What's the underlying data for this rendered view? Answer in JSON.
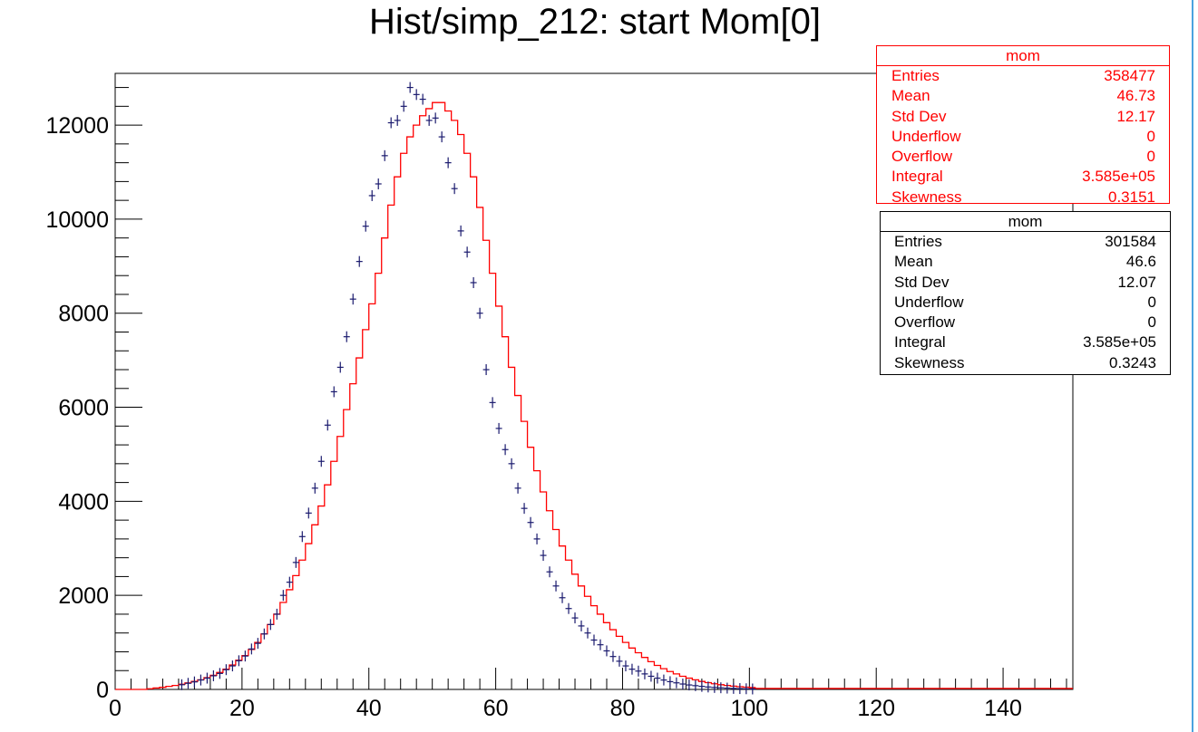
{
  "chart_data": {
    "type": "histogram",
    "title": "Hist/simp_212: start Mom[0]",
    "xlabel": "",
    "ylabel": "",
    "xlim": [
      0,
      151
    ],
    "ylim": [
      0,
      13100
    ],
    "xticks": [
      0,
      20,
      40,
      60,
      80,
      100,
      120,
      140
    ],
    "yticks": [
      0,
      2000,
      4000,
      6000,
      8000,
      10000,
      12000
    ],
    "bin_width": 1,
    "grid": false,
    "series": [
      {
        "name": "",
        "style": "step",
        "color": "#ff0000",
        "x": [
          5,
          6,
          7,
          8,
          9,
          10,
          11,
          12,
          13,
          14,
          15,
          16,
          17,
          18,
          19,
          20,
          21,
          22,
          23,
          24,
          25,
          26,
          27,
          28,
          29,
          30,
          31,
          32,
          33,
          34,
          35,
          36,
          37,
          38,
          39,
          40,
          41,
          42,
          43,
          44,
          45,
          46,
          47,
          48,
          49,
          50,
          51,
          52,
          53,
          54,
          55,
          56,
          57,
          58,
          59,
          60,
          61,
          62,
          63,
          64,
          65,
          66,
          67,
          68,
          69,
          70,
          71,
          72,
          73,
          74,
          75,
          76,
          77,
          78,
          79,
          80,
          81,
          82,
          83,
          84,
          85,
          86,
          87,
          88,
          89,
          90,
          91,
          92,
          93,
          94,
          95,
          96,
          97,
          98,
          99,
          100
        ],
        "values": [
          15,
          30,
          45,
          65,
          85,
          110,
          140,
          170,
          205,
          250,
          300,
          360,
          430,
          520,
          620,
          720,
          850,
          1000,
          1180,
          1380,
          1600,
          1850,
          2120,
          2420,
          2750,
          3100,
          3500,
          3900,
          4350,
          4850,
          5380,
          5950,
          6500,
          7050,
          7650,
          8200,
          8850,
          9600,
          10300,
          10900,
          11400,
          11750,
          12000,
          12200,
          12350,
          12480,
          12480,
          12300,
          12100,
          11800,
          11400,
          10900,
          10250,
          9550,
          8850,
          8150,
          7500,
          6850,
          6250,
          5700,
          5150,
          4650,
          4200,
          3800,
          3400,
          3050,
          2750,
          2450,
          2200,
          1980,
          1780,
          1600,
          1420,
          1270,
          1130,
          1000,
          880,
          780,
          680,
          590,
          510,
          440,
          380,
          330,
          280,
          240,
          205,
          170,
          145,
          120,
          100,
          85,
          70,
          58,
          48,
          40
        ],
        "tail": {
          "from": 100,
          "to": 151,
          "value": 20
        }
      },
      {
        "name": "",
        "style": "points",
        "color": "#1a1a6e",
        "x": [
          10,
          11,
          12,
          13,
          14,
          15,
          16,
          17,
          18,
          19,
          20,
          21,
          22,
          23,
          24,
          25,
          26,
          27,
          28,
          29,
          30,
          31,
          32,
          33,
          34,
          35,
          36,
          37,
          38,
          39,
          40,
          41,
          42,
          43,
          44,
          45,
          46,
          47,
          48,
          49,
          50,
          51,
          52,
          53,
          54,
          55,
          56,
          57,
          58,
          59,
          60,
          61,
          62,
          63,
          64,
          65,
          66,
          67,
          68,
          69,
          70,
          71,
          72,
          73,
          74,
          75,
          76,
          77,
          78,
          79,
          80,
          81,
          82,
          83,
          84,
          85,
          86,
          87,
          88,
          89,
          90,
          91,
          92,
          93,
          94,
          95,
          96,
          97,
          98,
          99,
          100
        ],
        "values": [
          100,
          130,
          160,
          200,
          240,
          290,
          340,
          420,
          500,
          610,
          710,
          860,
          980,
          1180,
          1380,
          1600,
          2000,
          2280,
          2700,
          3250,
          3750,
          4280,
          4850,
          5620,
          6330,
          6850,
          7500,
          8300,
          9100,
          9850,
          10500,
          10750,
          11350,
          12050,
          12100,
          12400,
          12800,
          12650,
          12550,
          12100,
          12150,
          11750,
          11200,
          10650,
          9750,
          9300,
          8650,
          8000,
          6800,
          6100,
          5550,
          5100,
          4800,
          4280,
          3850,
          3550,
          3200,
          2850,
          2500,
          2200,
          1950,
          1720,
          1520,
          1350,
          1200,
          1050,
          950,
          820,
          700,
          600,
          500,
          430,
          390,
          330,
          280,
          240,
          200,
          165,
          140,
          115,
          95,
          80,
          65,
          52,
          42,
          35,
          28,
          22,
          18,
          14,
          10
        ]
      }
    ]
  },
  "stats_sim": {
    "header": "mom",
    "rows": [
      {
        "label": "Entries",
        "value": "358477"
      },
      {
        "label": "Mean",
        "value": "46.73"
      },
      {
        "label": "Std Dev",
        "value": "12.17"
      },
      {
        "label": "Underflow",
        "value": "0"
      },
      {
        "label": "Overflow",
        "value": "0"
      },
      {
        "label": "Integral",
        "value": "3.585e+05"
      },
      {
        "label": "Skewness",
        "value": "0.3151"
      }
    ]
  },
  "stats_data": {
    "header": "mom",
    "rows": [
      {
        "label": "Entries",
        "value": "301584"
      },
      {
        "label": "Mean",
        "value": "46.6"
      },
      {
        "label": "Std Dev",
        "value": "12.07"
      },
      {
        "label": "Underflow",
        "value": "0"
      },
      {
        "label": "Overflow",
        "value": "0"
      },
      {
        "label": "Integral",
        "value": "3.585e+05"
      },
      {
        "label": "Skewness",
        "value": "0.3243"
      }
    ]
  },
  "colors": {
    "simulation": "#ff0000",
    "data_points": "#1a1a6e",
    "frame": "#000000",
    "window_edge": "#4aa3df"
  }
}
